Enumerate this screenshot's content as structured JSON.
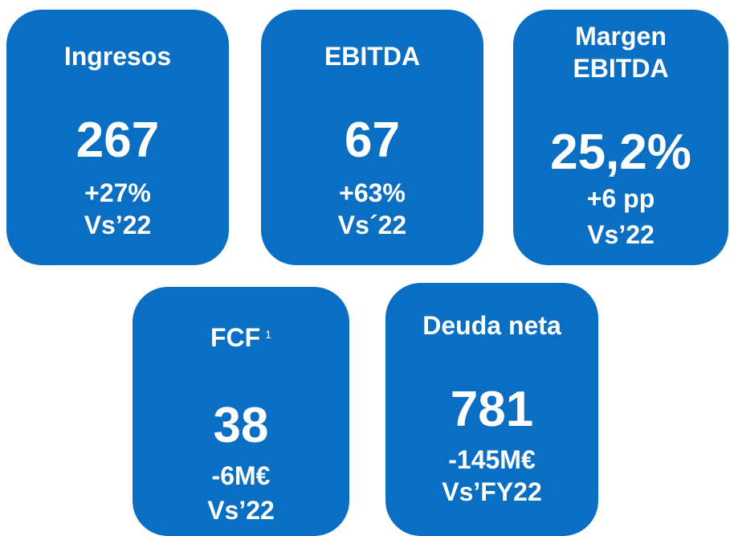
{
  "cards": [
    {
      "title_lines": [
        "Ingresos"
      ],
      "value": "267",
      "change": "+27%",
      "comparison": "Vs’22"
    },
    {
      "title_lines": [
        "EBITDA"
      ],
      "value": "67",
      "change": "+63%",
      "comparison": "Vs´22"
    },
    {
      "title_lines": [
        "Margen",
        "EBITDA"
      ],
      "value": "25,2%",
      "change": "+6 pp",
      "comparison": "Vs’22"
    },
    {
      "title_lines": [
        "FCF"
      ],
      "note": "1",
      "value": "38",
      "change": "-6M€",
      "comparison": "Vs’22"
    },
    {
      "title_lines": [
        "Deuda neta"
      ],
      "value": "781",
      "change": "-145M€",
      "comparison": "Vs’FY22"
    }
  ]
}
